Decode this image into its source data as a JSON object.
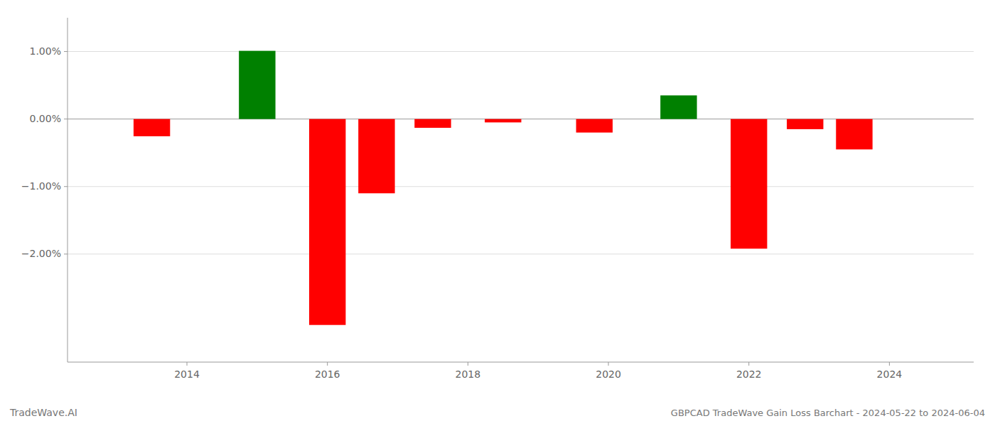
{
  "chart_data": {
    "type": "bar",
    "title": "GBPCAD TradeWave Gain Loss Barchart - 2024-05-22 to 2024-06-04",
    "annotations": [
      "TradeWave.AI"
    ],
    "x": [
      2013.5,
      2015.0,
      2016.0,
      2016.7,
      2017.5,
      2018.5,
      2019.8,
      2021.0,
      2022.0,
      2022.8,
      2023.5
    ],
    "values": [
      -0.255,
      1.01,
      -3.05,
      -1.1,
      -0.13,
      -0.05,
      -0.2,
      0.35,
      -1.92,
      -0.15,
      -0.45
    ],
    "colors": [
      "#ff0000",
      "#008000",
      "#ff0000",
      "#ff0000",
      "#ff0000",
      "#ff0000",
      "#ff0000",
      "#008000",
      "#ff0000",
      "#ff0000",
      "#ff0000"
    ],
    "xlim": [
      2012.3,
      2025.2
    ],
    "xticks": [
      2014,
      2016,
      2018,
      2020,
      2022,
      2024
    ],
    "ylim": [
      -3.6,
      1.5
    ],
    "yticks": [
      {
        "value": 1.0,
        "label": "1.00%"
      },
      {
        "value": 0.0,
        "label": "0.00%"
      },
      {
        "value": -1.0,
        "label": "−1.00%"
      },
      {
        "value": -2.0,
        "label": "−2.00%"
      }
    ],
    "grid": true
  }
}
